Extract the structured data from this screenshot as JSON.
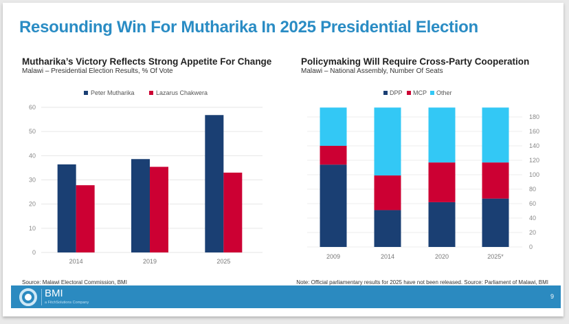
{
  "slide": {
    "title": "Resounding Win For Mutharika In 2025 Presidential Election",
    "page_number": "9",
    "brand": "BMI",
    "brand_sub": "a FitchSolutions Company"
  },
  "chart_data": [
    {
      "type": "bar",
      "title": "Mutharika’s Victory Reflects Strong Appetite For Change",
      "subtitle": "Malawi – Presidential Election Results, % Of Vote",
      "categories": [
        "2014",
        "2019",
        "2025"
      ],
      "series": [
        {
          "name": "Peter Mutharika",
          "color": "#1a3f73",
          "values": [
            36.4,
            38.6,
            56.8
          ]
        },
        {
          "name": "Lazarus Chakwera",
          "color": "#cc0033",
          "values": [
            27.8,
            35.4,
            33.0
          ]
        }
      ],
      "ylim": [
        0,
        60
      ],
      "yticks": [
        0,
        10,
        20,
        30,
        40,
        50,
        60
      ],
      "grid": true,
      "legend": "top",
      "source": "Source: Malawi Electoral Commission, BMI"
    },
    {
      "type": "bar",
      "stacked": true,
      "title": "Policymaking Will Require Cross-Party Cooperation",
      "subtitle": "Malawi – National Assembly, Number Of Seats",
      "categories": [
        "2009",
        "2014",
        "2020",
        "2025*"
      ],
      "series": [
        {
          "name": "DPP",
          "color": "#1a3f73",
          "values": [
            114,
            51,
            62,
            67
          ]
        },
        {
          "name": "MCP",
          "color": "#cc0033",
          "values": [
            26,
            48,
            55,
            50
          ]
        },
        {
          "name": "Other",
          "color": "#33c8f5",
          "values": [
            53,
            94,
            76,
            76
          ]
        }
      ],
      "ylim": [
        0,
        193
      ],
      "yticks": [
        0,
        20,
        40,
        60,
        80,
        100,
        120,
        140,
        160,
        180
      ],
      "yaxis_side": "right",
      "grid": true,
      "legend": "top",
      "source": "Note: Official parliamentary results for 2025 have not been released. Source: Parliament of Malawi, BMI"
    }
  ]
}
